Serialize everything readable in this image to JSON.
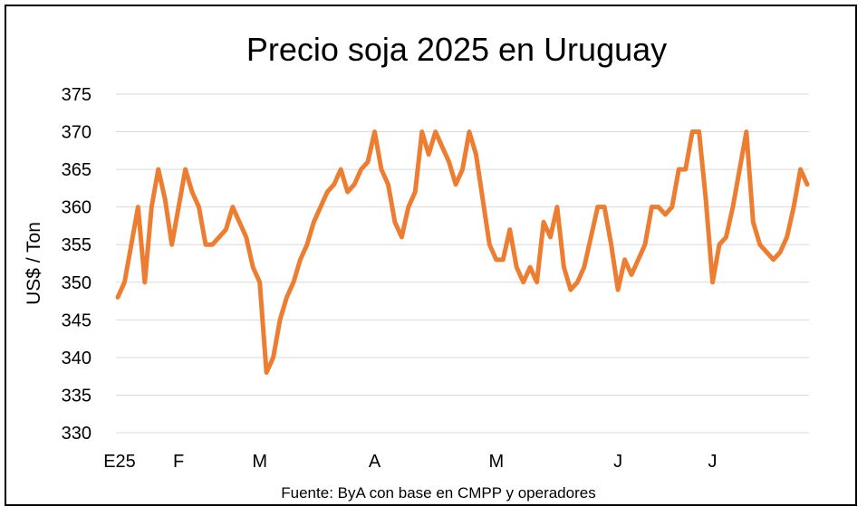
{
  "chart_data": {
    "type": "line",
    "title": "Precio soja 2025 en Uruguay",
    "xlabel": "",
    "ylabel": "US$ / Ton",
    "source": "Fuente: ByA con base en CMPP y operadores",
    "ylim": [
      330,
      375
    ],
    "yticks": [
      330,
      335,
      340,
      345,
      350,
      355,
      360,
      365,
      370,
      375
    ],
    "x_tick_labels": [
      {
        "label": "E25",
        "index": 0
      },
      {
        "label": "F",
        "index": 9
      },
      {
        "label": "M",
        "index": 21
      },
      {
        "label": "A",
        "index": 38
      },
      {
        "label": "M",
        "index": 56
      },
      {
        "label": "J",
        "index": 74
      },
      {
        "label": "J",
        "index": 88
      }
    ],
    "grid": true,
    "legend": "none",
    "line_color": "#ED7D31",
    "series": [
      {
        "values": [
          348,
          350,
          355,
          360,
          350,
          360,
          365,
          361,
          355,
          360,
          365,
          362,
          360,
          355,
          355,
          356,
          357,
          360,
          358,
          356,
          352,
          350,
          338,
          340,
          345,
          348,
          350,
          353,
          355,
          358,
          360,
          362,
          363,
          365,
          362,
          363,
          365,
          366,
          370,
          365,
          363,
          358,
          356,
          360,
          362,
          370,
          367,
          370,
          368,
          366,
          363,
          365,
          370,
          367,
          361,
          355,
          353,
          353,
          357,
          352,
          350,
          352,
          350,
          358,
          356,
          360,
          352,
          349,
          350,
          352,
          356,
          360,
          360,
          355,
          349,
          353,
          351,
          353,
          355,
          360,
          360,
          359,
          360,
          365,
          365,
          370,
          370,
          361,
          350,
          355,
          356,
          360,
          365,
          370,
          358,
          355,
          354,
          353,
          354,
          356,
          360,
          365,
          363
        ]
      }
    ]
  }
}
